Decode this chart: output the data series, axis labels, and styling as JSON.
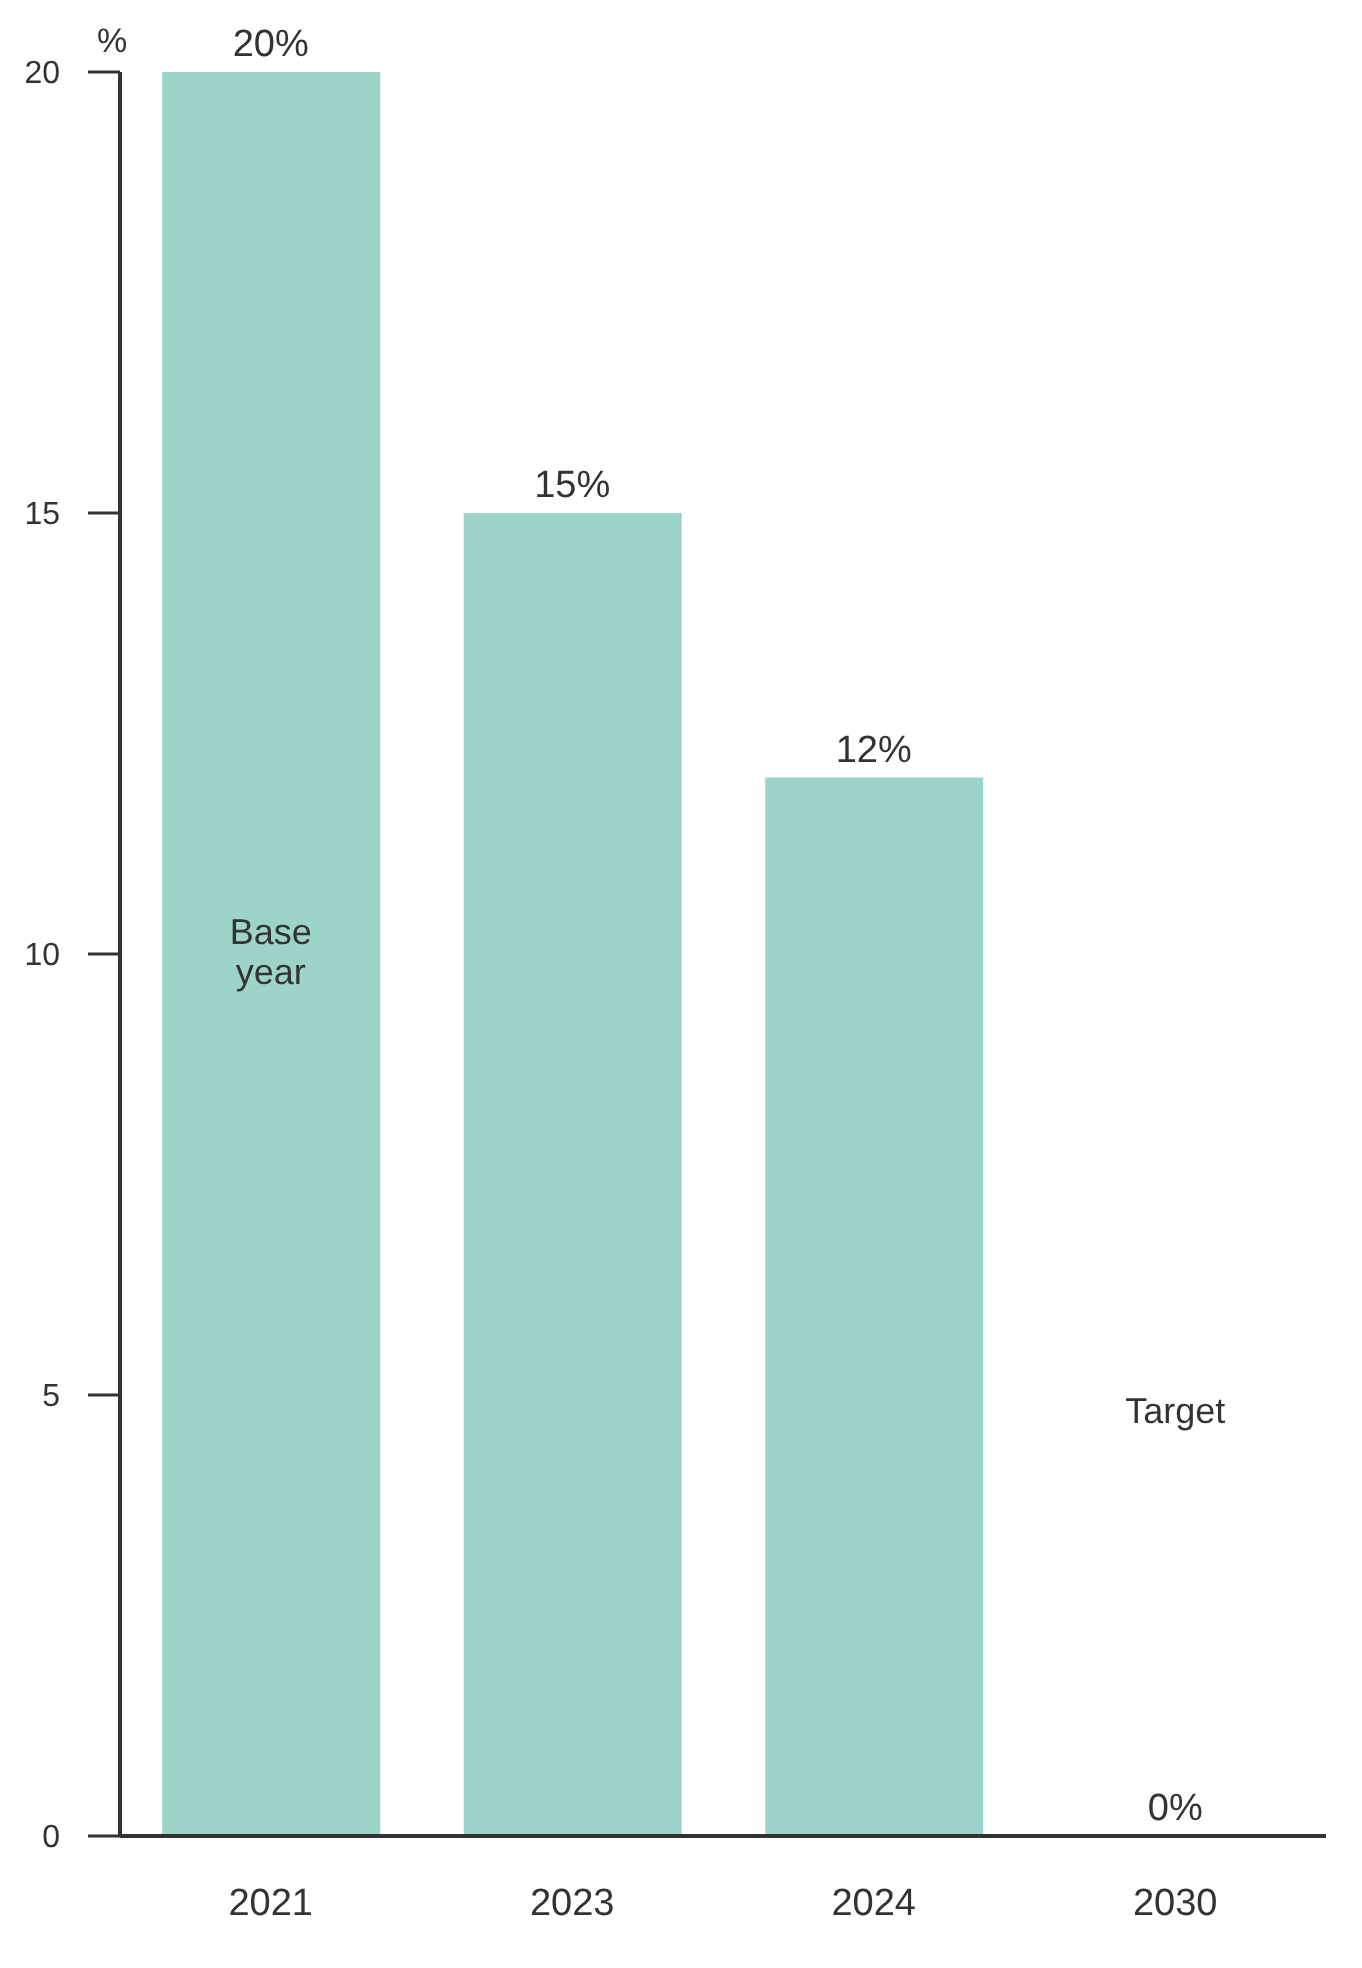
{
  "chart_data": {
    "type": "bar",
    "ylabel": "%",
    "categories": [
      "2021",
      "2023",
      "2024",
      "2030"
    ],
    "values": [
      20,
      15,
      12,
      0
    ],
    "value_labels": [
      "20%",
      "15%",
      "12%",
      "0%"
    ],
    "color": "#9dd4ca",
    "ylim": [
      0,
      20
    ],
    "yticks": [
      0,
      5,
      10,
      15,
      20
    ],
    "grid": false,
    "legend": false,
    "annotations": [
      "Base year",
      "Target"
    ]
  }
}
